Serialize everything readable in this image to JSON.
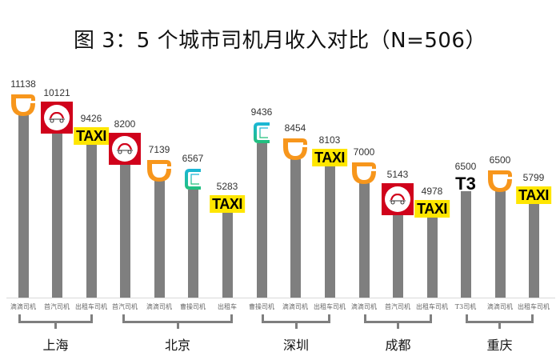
{
  "title": "图 3：5 个城市司机月收入对比（N=506）",
  "colors": {
    "bar": "#7f7f7f",
    "didi_orange": "#f7961c",
    "shouqi_red": "#d0021b",
    "taxi_yellow": "#ffe600",
    "caocao_teal": "#1bb6d9",
    "bracket": "#7f7f7f"
  },
  "chart_data": {
    "type": "bar",
    "title": "图 3：5 个城市司机月收入对比（N=506）",
    "xlabel": "",
    "ylabel": "",
    "grid": false,
    "legend": "none (brand logos above bars)",
    "groups": [
      {
        "city": "上海",
        "bars": [
          {
            "label": "滴滴司机",
            "value": 11138,
            "logo": "didi-logo"
          },
          {
            "label": "首汽司机",
            "value": 10121,
            "logo": "shouqi-logo"
          },
          {
            "label": "出租车司机",
            "value": 9426,
            "logo": "taxi-logo"
          }
        ]
      },
      {
        "city": "北京",
        "bars": [
          {
            "label": "首汽司机",
            "value": 8200,
            "logo": "shouqi-logo"
          },
          {
            "label": "滴滴司机",
            "value": 7139,
            "logo": "didi-logo"
          },
          {
            "label": "曹操司机",
            "value": 6567,
            "logo": "caocao-logo"
          },
          {
            "label": "出租车",
            "value": 5283,
            "logo": "taxi-logo"
          }
        ]
      },
      {
        "city": "深圳",
        "bars": [
          {
            "label": "曹操司机",
            "value": 9436,
            "logo": "caocao-logo"
          },
          {
            "label": "滴滴司机",
            "value": 8454,
            "logo": "didi-logo"
          },
          {
            "label": "出租车司机",
            "value": 8103,
            "logo": "taxi-logo"
          }
        ]
      },
      {
        "city": "成都",
        "bars": [
          {
            "label": "滴滴司机",
            "value": 7000,
            "logo": "didi-logo"
          },
          {
            "label": "首汽司机",
            "value": 5143,
            "logo": "shouqi-logo"
          },
          {
            "label": "出租车司机",
            "value": 4978,
            "logo": "taxi-logo"
          }
        ]
      },
      {
        "city": "重庆",
        "bars": [
          {
            "label": "T3司机",
            "value": 6500,
            "logo": "t3-logo"
          },
          {
            "label": "滴滴司机",
            "value": 6500,
            "logo": "didi-logo"
          },
          {
            "label": "出租车司机",
            "value": 5799,
            "logo": "taxi-logo"
          }
        ]
      }
    ],
    "categories": [
      "滴滴司机",
      "首汽司机",
      "出租车司机",
      "首汽司机",
      "滴滴司机",
      "曹操司机",
      "出租车",
      "曹操司机",
      "滴滴司机",
      "出租车司机",
      "滴滴司机",
      "首汽司机",
      "出租车司机",
      "T3司机",
      "滴滴司机",
      "出租车司机"
    ],
    "values": [
      11138,
      10121,
      9426,
      8200,
      7139,
      6567,
      5283,
      9436,
      8454,
      8103,
      7000,
      5143,
      4978,
      6500,
      6500,
      5799
    ],
    "ylim": [
      0,
      12000
    ]
  },
  "bars": [
    {
      "label": "滴滴司机",
      "value": "11138",
      "logo": "didi"
    },
    {
      "label": "首汽司机",
      "value": "10121",
      "logo": "shouqi"
    },
    {
      "label": "出租车司机",
      "value": "9426",
      "logo": "taxi"
    },
    {
      "label": "首汽司机",
      "value": "8200",
      "logo": "shouqi"
    },
    {
      "label": "滴滴司机",
      "value": "7139",
      "logo": "didi"
    },
    {
      "label": "曹操司机",
      "value": "6567",
      "logo": "caocao"
    },
    {
      "label": "出租车",
      "value": "5283",
      "logo": "taxi"
    },
    {
      "label": "曹操司机",
      "value": "9436",
      "logo": "caocao"
    },
    {
      "label": "滴滴司机",
      "value": "8454",
      "logo": "didi"
    },
    {
      "label": "出租车司机",
      "value": "8103",
      "logo": "taxi"
    },
    {
      "label": "滴滴司机",
      "value": "7000",
      "logo": "didi"
    },
    {
      "label": "首汽司机",
      "value": "5143",
      "logo": "shouqi"
    },
    {
      "label": "出租车司机",
      "value": "4978",
      "logo": "taxi"
    },
    {
      "label": "T3司机",
      "value": "6500",
      "logo": "t3"
    },
    {
      "label": "滴滴司机",
      "value": "6500",
      "logo": "didi"
    },
    {
      "label": "出租车司机",
      "value": "5799",
      "logo": "taxi"
    }
  ],
  "cities": [
    {
      "name": "上海"
    },
    {
      "name": "北京"
    },
    {
      "name": "深圳"
    },
    {
      "name": "成都"
    },
    {
      "name": "重庆"
    }
  ],
  "logos": {
    "taxi_text": "TAXI",
    "t3_text": "T3"
  }
}
